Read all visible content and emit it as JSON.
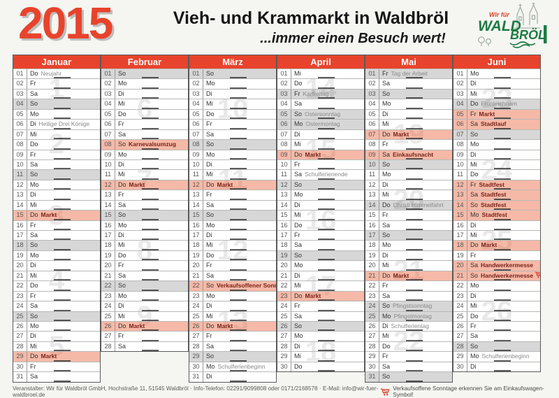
{
  "header": {
    "year": "2015",
    "title": "Vieh- und Krammarkt in Waldbröl",
    "subtitle": "...immer einen Besuch wert!",
    "logo": {
      "top": "Wir für",
      "line1": "WALD",
      "line2": "BRÖL"
    }
  },
  "colors": {
    "accent_red": "#e8432c",
    "market_row": "#f6b49c",
    "sunday_row": "#d9d9d9",
    "cart_red": "#d8321e",
    "logo_green": "#1e7a43"
  },
  "footer": {
    "organizer": "Veranstalter: Wir für Waldbröl GmbH, Hochstraße 11, 51545 Waldbröl · Info-Telefon: 02291/9099808 oder 0171/2168578 · E-Mail: info@wir-fuer-waldbroel.de",
    "cart_note": "Verkaufsoffene Sonntage erkennen Sie am Einkaufswagen-Symbol!"
  },
  "months": [
    {
      "name": "Januar",
      "weeks": [
        {
          "num": "1",
          "at": 2.5
        },
        {
          "num": "2",
          "at": 8
        },
        {
          "num": "3",
          "at": 15
        },
        {
          "num": "4",
          "at": 21.5
        },
        {
          "num": "5",
          "at": 28
        }
      ],
      "days": [
        {
          "n": "01",
          "w": "Do",
          "e": "Neujahr",
          "t": "note"
        },
        {
          "n": "02",
          "w": "Fr"
        },
        {
          "n": "03",
          "w": "Sa"
        },
        {
          "n": "04",
          "w": "So",
          "bg": "gray"
        },
        {
          "n": "05",
          "w": "Mo"
        },
        {
          "n": "06",
          "w": "Di",
          "e": "Heilige Drei Könige",
          "t": "note"
        },
        {
          "n": "07",
          "w": "Mi"
        },
        {
          "n": "08",
          "w": "Do"
        },
        {
          "n": "09",
          "w": "Fr"
        },
        {
          "n": "10",
          "w": "Sa"
        },
        {
          "n": "11",
          "w": "So",
          "bg": "gray"
        },
        {
          "n": "12",
          "w": "Mo"
        },
        {
          "n": "13",
          "w": "Di"
        },
        {
          "n": "14",
          "w": "Mi"
        },
        {
          "n": "15",
          "w": "Do",
          "e": "Markt",
          "t": "sp",
          "bg": "market"
        },
        {
          "n": "16",
          "w": "Fr"
        },
        {
          "n": "17",
          "w": "Sa"
        },
        {
          "n": "18",
          "w": "So",
          "bg": "gray"
        },
        {
          "n": "19",
          "w": "Mo"
        },
        {
          "n": "20",
          "w": "Di"
        },
        {
          "n": "21",
          "w": "Mi"
        },
        {
          "n": "22",
          "w": "Do"
        },
        {
          "n": "23",
          "w": "Fr"
        },
        {
          "n": "24",
          "w": "Sa"
        },
        {
          "n": "25",
          "w": "So",
          "bg": "gray"
        },
        {
          "n": "26",
          "w": "Mo"
        },
        {
          "n": "27",
          "w": "Di"
        },
        {
          "n": "28",
          "w": "Mi"
        },
        {
          "n": "29",
          "w": "Do",
          "e": "Markt",
          "t": "sp",
          "bg": "market"
        },
        {
          "n": "30",
          "w": "Fr"
        },
        {
          "n": "31",
          "w": "Sa"
        }
      ]
    },
    {
      "name": "Februar",
      "weeks": [
        {
          "num": "6",
          "at": 4.5
        },
        {
          "num": "7",
          "at": 11.5
        },
        {
          "num": "8",
          "at": 18.5
        },
        {
          "num": "9",
          "at": 25
        }
      ],
      "days": [
        {
          "n": "01",
          "w": "So",
          "bg": "gray"
        },
        {
          "n": "02",
          "w": "Mo"
        },
        {
          "n": "03",
          "w": "Di"
        },
        {
          "n": "04",
          "w": "Mi"
        },
        {
          "n": "05",
          "w": "Do"
        },
        {
          "n": "06",
          "w": "Fr"
        },
        {
          "n": "07",
          "w": "Sa"
        },
        {
          "n": "08",
          "w": "So",
          "e": "Karnevalsumzug",
          "t": "sp",
          "bg": "market"
        },
        {
          "n": "09",
          "w": "Mo"
        },
        {
          "n": "10",
          "w": "Di"
        },
        {
          "n": "11",
          "w": "Mi"
        },
        {
          "n": "12",
          "w": "Do",
          "e": "Markt",
          "t": "sp",
          "bg": "market"
        },
        {
          "n": "13",
          "w": "Fr"
        },
        {
          "n": "14",
          "w": "Sa"
        },
        {
          "n": "15",
          "w": "So",
          "bg": "gray"
        },
        {
          "n": "16",
          "w": "Mo"
        },
        {
          "n": "17",
          "w": "Di"
        },
        {
          "n": "18",
          "w": "Mi"
        },
        {
          "n": "19",
          "w": "Do"
        },
        {
          "n": "20",
          "w": "Fr"
        },
        {
          "n": "21",
          "w": "Sa"
        },
        {
          "n": "22",
          "w": "So",
          "bg": "gray"
        },
        {
          "n": "23",
          "w": "Mo"
        },
        {
          "n": "24",
          "w": "Di"
        },
        {
          "n": "25",
          "w": "Mi"
        },
        {
          "n": "26",
          "w": "Do",
          "e": "Markt",
          "t": "sp",
          "bg": "market"
        },
        {
          "n": "27",
          "w": "Fr"
        },
        {
          "n": "28",
          "w": "Sa"
        }
      ]
    },
    {
      "name": "März",
      "weeks": [
        {
          "num": "10",
          "at": 4.5
        },
        {
          "num": "11",
          "at": 11.5
        },
        {
          "num": "12",
          "at": 18.5
        },
        {
          "num": "13",
          "at": 25.5
        }
      ],
      "days": [
        {
          "n": "01",
          "w": "So",
          "bg": "gray"
        },
        {
          "n": "02",
          "w": "Mo"
        },
        {
          "n": "03",
          "w": "Di"
        },
        {
          "n": "04",
          "w": "Mi"
        },
        {
          "n": "05",
          "w": "Do"
        },
        {
          "n": "06",
          "w": "Fr"
        },
        {
          "n": "07",
          "w": "Sa"
        },
        {
          "n": "08",
          "w": "So",
          "bg": "gray"
        },
        {
          "n": "09",
          "w": "Mo"
        },
        {
          "n": "10",
          "w": "Di"
        },
        {
          "n": "11",
          "w": "Mi"
        },
        {
          "n": "12",
          "w": "Do",
          "e": "Markt",
          "t": "sp",
          "bg": "market"
        },
        {
          "n": "13",
          "w": "Fr"
        },
        {
          "n": "14",
          "w": "Sa"
        },
        {
          "n": "15",
          "w": "So",
          "bg": "gray"
        },
        {
          "n": "16",
          "w": "Mo"
        },
        {
          "n": "17",
          "w": "Di"
        },
        {
          "n": "18",
          "w": "Mi"
        },
        {
          "n": "19",
          "w": "Do"
        },
        {
          "n": "20",
          "w": "Fr"
        },
        {
          "n": "21",
          "w": "Sa"
        },
        {
          "n": "22",
          "w": "So",
          "e": "Verkaufsoffener Sonntag",
          "t": "sp",
          "bg": "market",
          "cart": true
        },
        {
          "n": "23",
          "w": "Mo"
        },
        {
          "n": "24",
          "w": "Di"
        },
        {
          "n": "25",
          "w": "Mi"
        },
        {
          "n": "26",
          "w": "Do",
          "e": "Markt",
          "t": "sp",
          "bg": "market"
        },
        {
          "n": "27",
          "w": "Fr"
        },
        {
          "n": "28",
          "w": "Sa"
        },
        {
          "n": "29",
          "w": "So",
          "bg": "gray"
        },
        {
          "n": "30",
          "w": "Mo",
          "e": "Schulferienbeginn",
          "t": "note"
        },
        {
          "n": "31",
          "w": "Di"
        }
      ]
    },
    {
      "name": "April",
      "weeks": [
        {
          "num": "14",
          "at": 2.5
        },
        {
          "num": "15",
          "at": 8.5
        },
        {
          "num": "16",
          "at": 15.5
        },
        {
          "num": "17",
          "at": 22
        },
        {
          "num": "18",
          "at": 28.5
        }
      ],
      "days": [
        {
          "n": "01",
          "w": "Mi"
        },
        {
          "n": "02",
          "w": "Do"
        },
        {
          "n": "03",
          "w": "Fr",
          "e": "Karfreitag",
          "t": "note",
          "bg": "gray"
        },
        {
          "n": "04",
          "w": "Sa"
        },
        {
          "n": "05",
          "w": "So",
          "e": "Ostersonntag",
          "t": "note",
          "bg": "gray"
        },
        {
          "n": "06",
          "w": "Mo",
          "e": "Ostermontag",
          "t": "note",
          "bg": "gray"
        },
        {
          "n": "07",
          "w": "Di"
        },
        {
          "n": "08",
          "w": "Mi"
        },
        {
          "n": "09",
          "w": "Do",
          "e": "Markt",
          "t": "sp",
          "bg": "market"
        },
        {
          "n": "10",
          "w": "Fr"
        },
        {
          "n": "11",
          "w": "Sa",
          "e": "Schulferienende",
          "t": "note"
        },
        {
          "n": "12",
          "w": "So",
          "bg": "gray"
        },
        {
          "n": "13",
          "w": "Mo"
        },
        {
          "n": "14",
          "w": "Di"
        },
        {
          "n": "15",
          "w": "Mi"
        },
        {
          "n": "16",
          "w": "Do"
        },
        {
          "n": "17",
          "w": "Fr"
        },
        {
          "n": "18",
          "w": "Sa"
        },
        {
          "n": "19",
          "w": "So",
          "bg": "gray"
        },
        {
          "n": "20",
          "w": "Mo"
        },
        {
          "n": "21",
          "w": "Di"
        },
        {
          "n": "22",
          "w": "Mi"
        },
        {
          "n": "23",
          "w": "Do",
          "e": "Markt",
          "t": "sp",
          "bg": "market"
        },
        {
          "n": "24",
          "w": "Fr"
        },
        {
          "n": "25",
          "w": "Sa"
        },
        {
          "n": "26",
          "w": "So",
          "bg": "gray"
        },
        {
          "n": "27",
          "w": "Mo"
        },
        {
          "n": "28",
          "w": "Di"
        },
        {
          "n": "29",
          "w": "Mi"
        },
        {
          "n": "30",
          "w": "Do"
        }
      ]
    },
    {
      "name": "Mai",
      "weeks": [
        {
          "num": "19",
          "at": 7
        },
        {
          "num": "20",
          "at": 13.5
        },
        {
          "num": "21",
          "at": 20.5
        },
        {
          "num": "22",
          "at": 27.5
        }
      ],
      "days": [
        {
          "n": "01",
          "w": "Fr",
          "e": "Tag der Arbeit",
          "t": "note",
          "bg": "gray"
        },
        {
          "n": "02",
          "w": "Sa"
        },
        {
          "n": "03",
          "w": "So",
          "bg": "gray"
        },
        {
          "n": "04",
          "w": "Mo"
        },
        {
          "n": "05",
          "w": "Di"
        },
        {
          "n": "06",
          "w": "Mi"
        },
        {
          "n": "07",
          "w": "Do",
          "e": "Markt",
          "t": "sp",
          "bg": "market"
        },
        {
          "n": "08",
          "w": "Fr"
        },
        {
          "n": "09",
          "w": "Sa",
          "e": "Einkaufsnacht",
          "t": "sp",
          "bg": "market"
        },
        {
          "n": "10",
          "w": "So",
          "bg": "gray"
        },
        {
          "n": "11",
          "w": "Mo"
        },
        {
          "n": "12",
          "w": "Di"
        },
        {
          "n": "13",
          "w": "Mi"
        },
        {
          "n": "14",
          "w": "Do",
          "e": "Christi Himmelfahrt",
          "t": "note",
          "bg": "gray"
        },
        {
          "n": "15",
          "w": "Fr"
        },
        {
          "n": "16",
          "w": "Sa"
        },
        {
          "n": "17",
          "w": "So",
          "bg": "gray"
        },
        {
          "n": "18",
          "w": "Mo"
        },
        {
          "n": "19",
          "w": "Di"
        },
        {
          "n": "20",
          "w": "Mi"
        },
        {
          "n": "21",
          "w": "Do",
          "e": "Markt",
          "t": "sp",
          "bg": "market"
        },
        {
          "n": "22",
          "w": "Fr"
        },
        {
          "n": "23",
          "w": "Sa"
        },
        {
          "n": "24",
          "w": "So",
          "e": "Pfingstsonntag",
          "t": "note",
          "bg": "gray"
        },
        {
          "n": "25",
          "w": "Mo",
          "e": "Pfingstmontag",
          "t": "note",
          "bg": "gray"
        },
        {
          "n": "26",
          "w": "Di",
          "e": "Schulferientag",
          "t": "note"
        },
        {
          "n": "27",
          "w": "Mi"
        },
        {
          "n": "28",
          "w": "Do"
        },
        {
          "n": "29",
          "w": "Fr"
        },
        {
          "n": "30",
          "w": "Sa"
        },
        {
          "n": "31",
          "w": "So",
          "bg": "gray"
        }
      ]
    },
    {
      "name": "Juni",
      "weeks": [
        {
          "num": "23",
          "at": 3.5
        },
        {
          "num": "24",
          "at": 10.5
        },
        {
          "num": "25",
          "at": 17.5
        },
        {
          "num": "26",
          "at": 24.5
        }
      ],
      "days": [
        {
          "n": "01",
          "w": "Mo"
        },
        {
          "n": "02",
          "w": "Di"
        },
        {
          "n": "03",
          "w": "Mi"
        },
        {
          "n": "04",
          "w": "Do",
          "e": "Fronleichnam",
          "t": "note",
          "bg": "gray"
        },
        {
          "n": "05",
          "w": "Fr",
          "e": "Markt",
          "t": "sp",
          "bg": "market"
        },
        {
          "n": "06",
          "w": "Sa",
          "e": "Stadtlauf",
          "t": "sp",
          "bg": "market"
        },
        {
          "n": "07",
          "w": "So",
          "bg": "gray"
        },
        {
          "n": "08",
          "w": "Mo"
        },
        {
          "n": "09",
          "w": "Di"
        },
        {
          "n": "10",
          "w": "Mi"
        },
        {
          "n": "11",
          "w": "Do"
        },
        {
          "n": "12",
          "w": "Fr",
          "e": "Stadtfest",
          "t": "sp",
          "bg": "market"
        },
        {
          "n": "13",
          "w": "Sa",
          "e": "Stadtfest",
          "t": "sp",
          "bg": "market"
        },
        {
          "n": "14",
          "w": "So",
          "e": "Stadtfest",
          "t": "sp",
          "bg": "market"
        },
        {
          "n": "15",
          "w": "Mo",
          "e": "Stadtfest",
          "t": "sp",
          "bg": "market"
        },
        {
          "n": "16",
          "w": "Di"
        },
        {
          "n": "17",
          "w": "Mi"
        },
        {
          "n": "18",
          "w": "Do",
          "e": "Markt",
          "t": "sp",
          "bg": "market"
        },
        {
          "n": "19",
          "w": "Fr"
        },
        {
          "n": "20",
          "w": "Sa",
          "e": "Handwerkermesse",
          "t": "sp",
          "bg": "market"
        },
        {
          "n": "21",
          "w": "So",
          "e": "Handwerkermesse",
          "t": "sp",
          "bg": "market",
          "cart": true
        },
        {
          "n": "22",
          "w": "Mo"
        },
        {
          "n": "23",
          "w": "Di"
        },
        {
          "n": "24",
          "w": "Mi"
        },
        {
          "n": "25",
          "w": "Do"
        },
        {
          "n": "26",
          "w": "Fr"
        },
        {
          "n": "27",
          "w": "Sa"
        },
        {
          "n": "28",
          "w": "So",
          "bg": "gray"
        },
        {
          "n": "29",
          "w": "Mo",
          "e": "Schulferienbeginn",
          "t": "note"
        },
        {
          "n": "30",
          "w": "Di"
        }
      ]
    }
  ]
}
